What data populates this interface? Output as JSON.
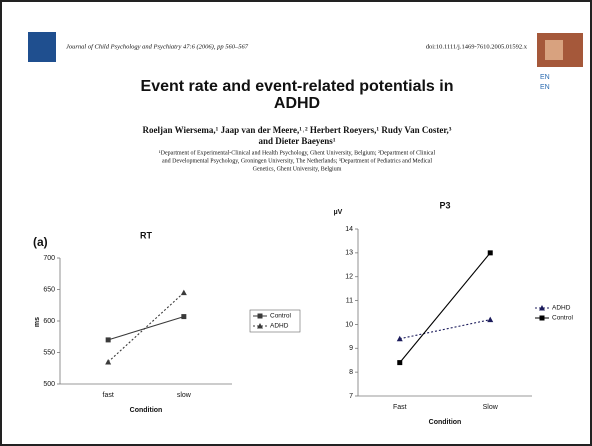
{
  "header": {
    "journal": "Journal of Child Psychology and Psychiatry 47:6 (2006), pp 560–567",
    "doi": "doi:10.1111/j.1469-7610.2005.01592.x",
    "lang": [
      "EN",
      "EN"
    ]
  },
  "article": {
    "title": [
      "Event rate and event-related potentials in",
      "ADHD"
    ],
    "authors": [
      "Roeljan Wiersema,¹ Jaap van der Meere,¹˒² Herbert Roeyers,¹ Rudy Van Coster,³",
      "and Dieter Baeyens¹"
    ],
    "affiliations": [
      "¹Department of Experimental-Clinical and Health Psychology, Ghent University, Belgium; ²Department of Clinical",
      "and Developmental Psychology, Groningen University, The Netherlands; ³Department of Pediatrics and Medical",
      "Genetics, Ghent University, Belgium"
    ]
  },
  "chart_data": [
    {
      "type": "line",
      "panel": "(a)",
      "title": "RT",
      "x_label": "Condition",
      "y_label": "ms",
      "categories": [
        "fast",
        "slow"
      ],
      "series": [
        {
          "name": "Control",
          "color": "#3a3a3a",
          "values": [
            570,
            607
          ],
          "marker": "square",
          "dashed": false
        },
        {
          "name": "ADHD",
          "color": "#3a3a3a",
          "values": [
            535,
            645
          ],
          "marker": "triangle",
          "dashed": true
        }
      ],
      "ylim": [
        500,
        700
      ],
      "yticks": [
        500,
        550,
        600,
        650,
        700
      ],
      "legend": "right",
      "legend_box": true
    },
    {
      "type": "line",
      "title": "P3",
      "x_label": "Condition",
      "y_label": "µV",
      "categories": [
        "Fast",
        "Slow"
      ],
      "series": [
        {
          "name": "ADHD",
          "color": "#1c1c5c",
          "values": [
            9.4,
            10.2
          ],
          "marker": "triangle",
          "dashed": true
        },
        {
          "name": "Control",
          "color": "#000000",
          "values": [
            8.4,
            13.0
          ],
          "marker": "square",
          "dashed": false
        }
      ],
      "ylim": [
        7,
        14
      ],
      "yticks": [
        7,
        8,
        9,
        10,
        11,
        12,
        13,
        14
      ],
      "legend": "right",
      "legend_box": false
    }
  ]
}
